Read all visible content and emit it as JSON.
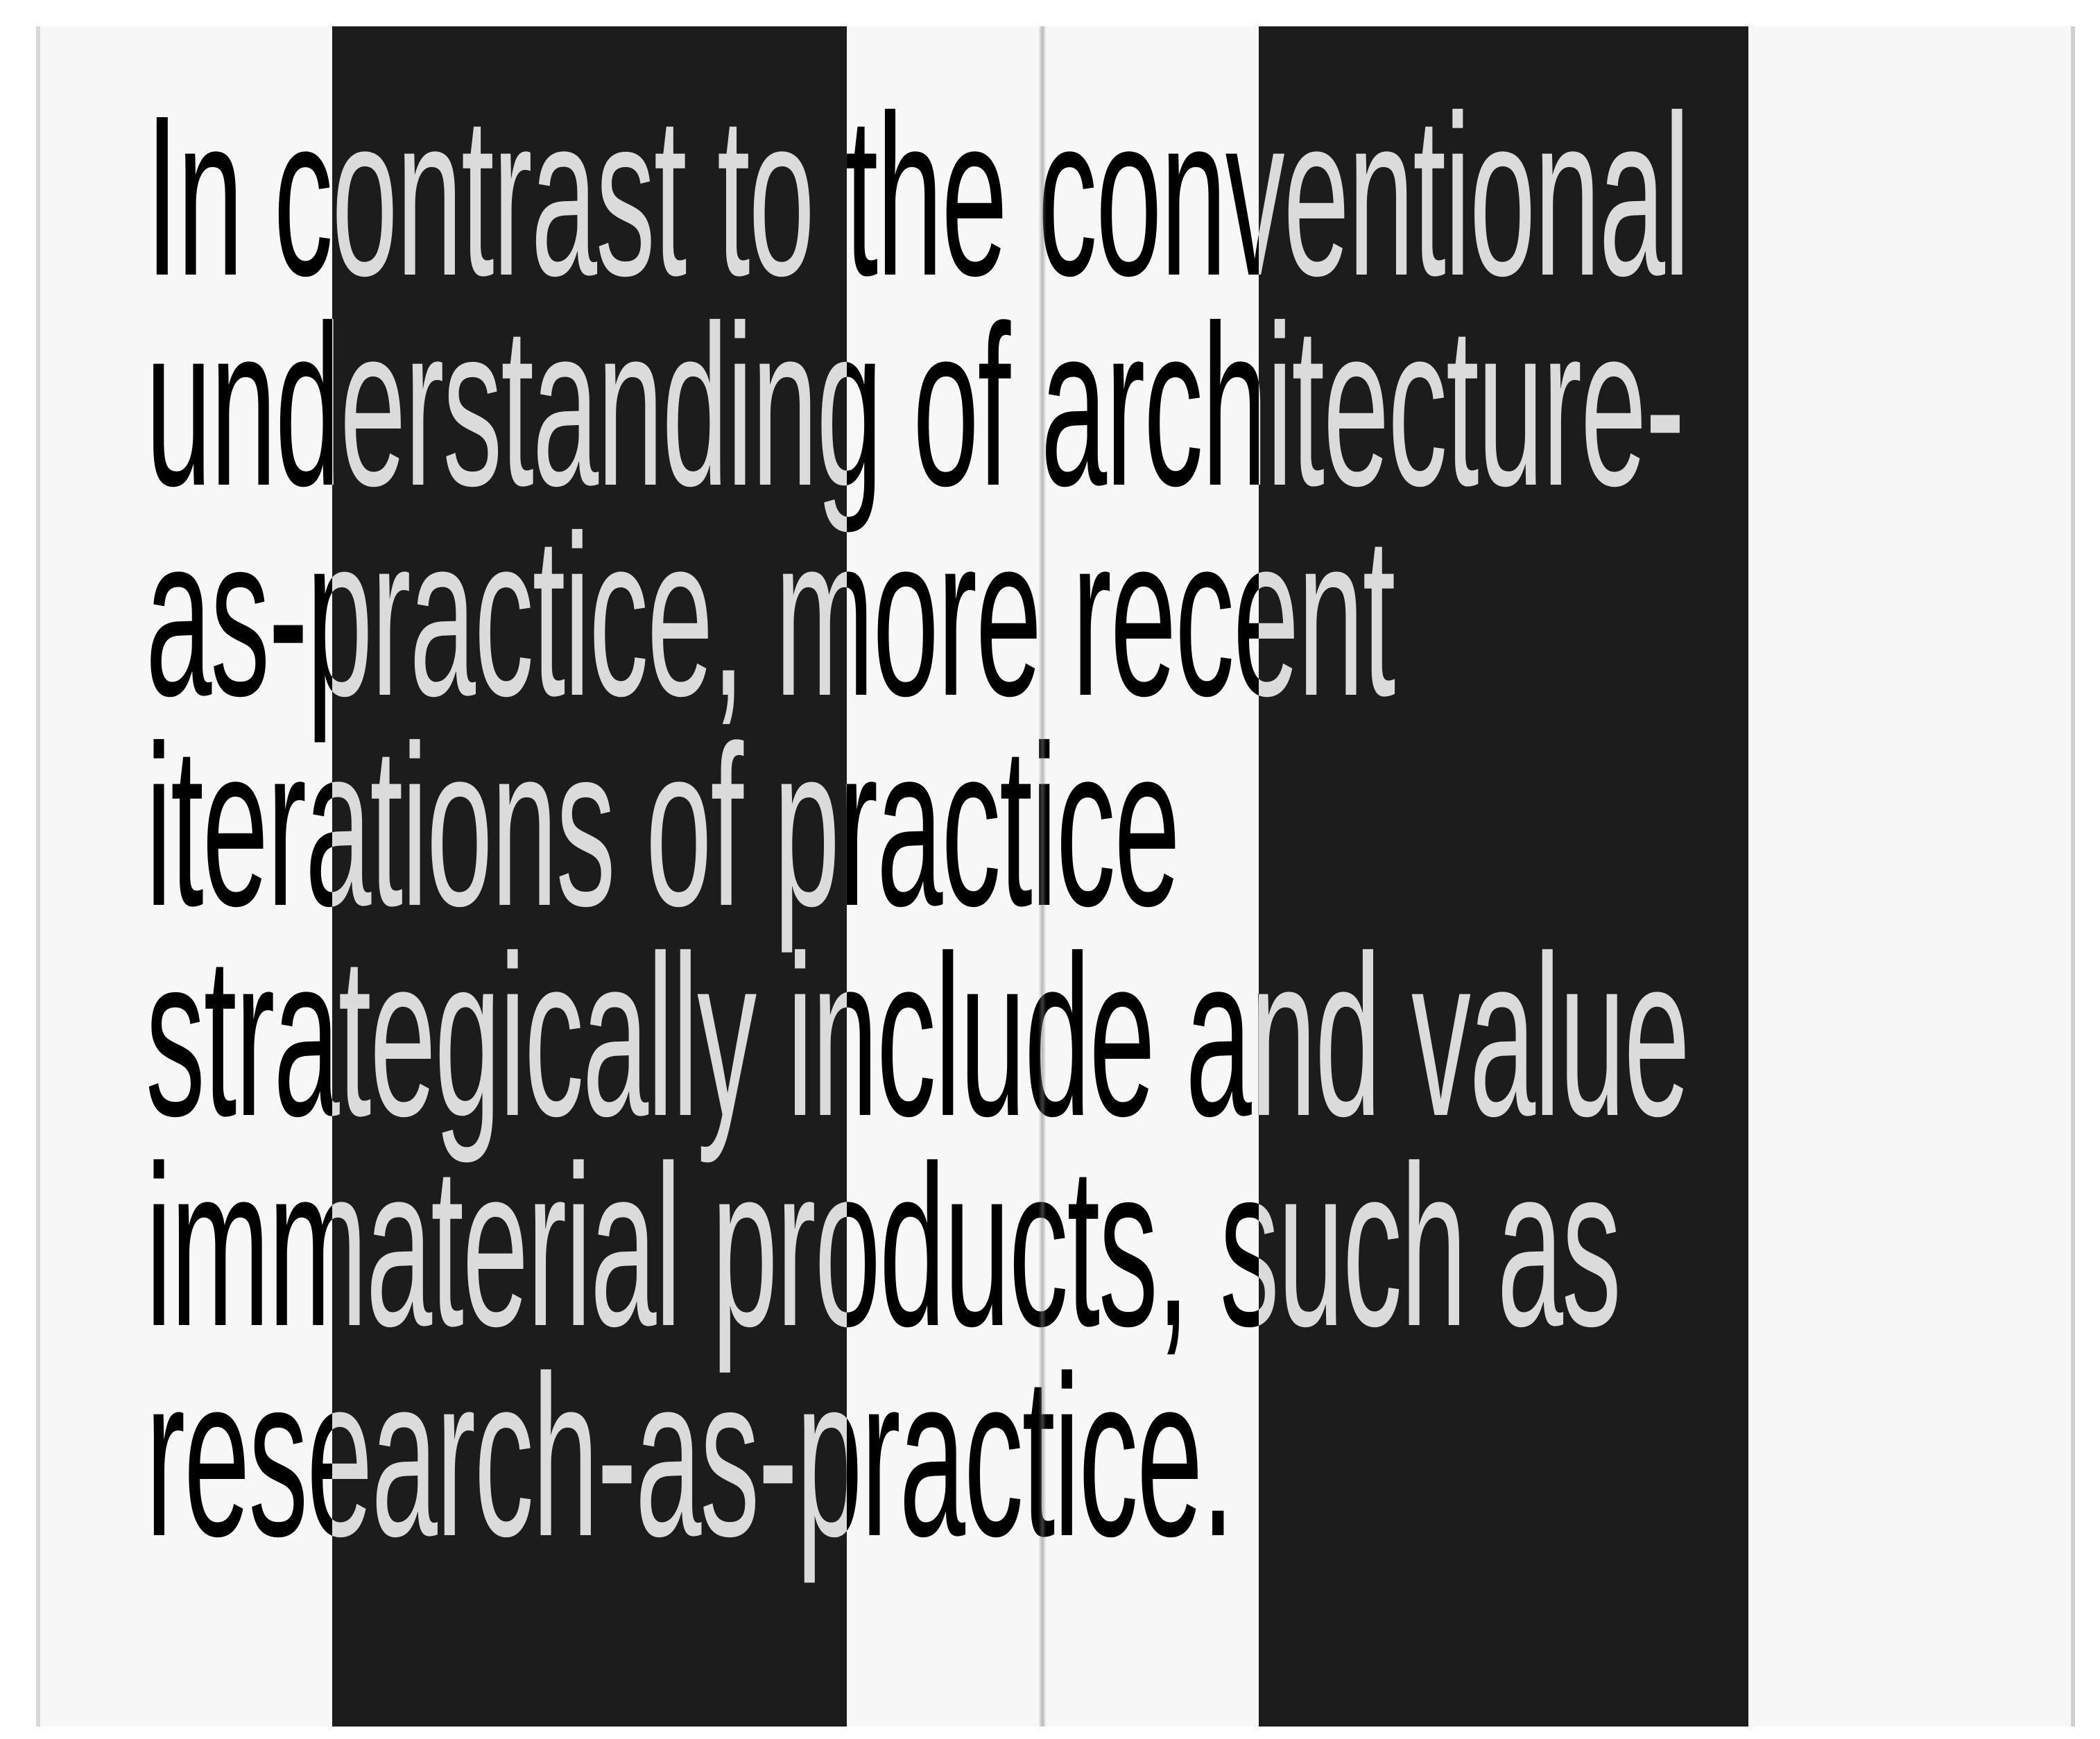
{
  "lines": [
    "In contrast to the conventional",
    "understanding of architecture-",
    "as-practice, more recent",
    "iterations of practice",
    "strategically include and value",
    "immaterial products, such as",
    "research-as-practice."
  ]
}
